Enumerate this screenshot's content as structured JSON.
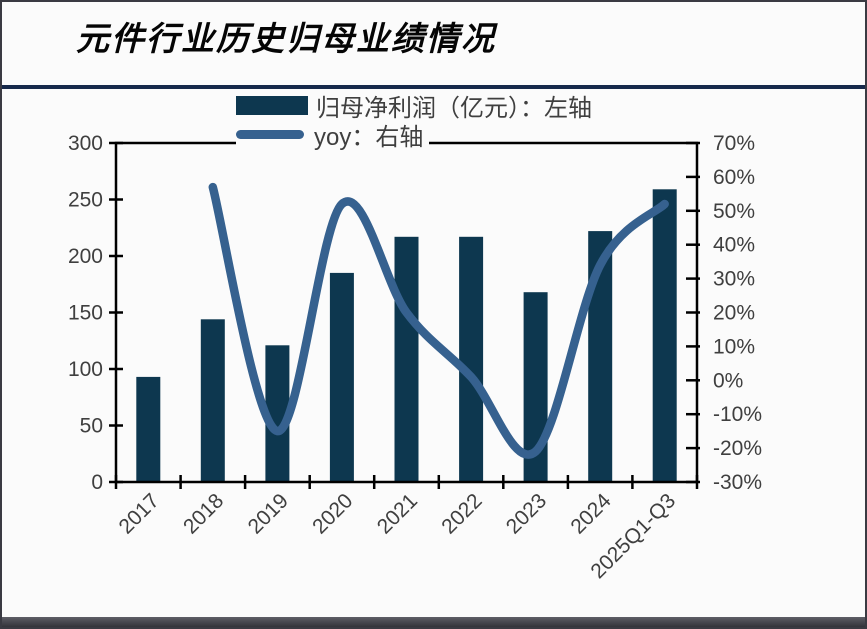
{
  "title": "元件行业历史归母业绩情况",
  "legend": {
    "bar_label": "归母净利润（亿元）：左轴",
    "line_label": "yoy：右轴"
  },
  "colors": {
    "bar": "#0d374f",
    "line": "#36618f",
    "divider": "#16294b",
    "axis_text": "#3f3f3f",
    "axis_line": "#000000",
    "background": "#fbfbfb"
  },
  "chart_data": {
    "type": "bar",
    "title": "元件行业历史归母业绩情况",
    "categories": [
      "2017",
      "2018",
      "2019",
      "2020",
      "2021",
      "2022",
      "2023",
      "2024",
      "2025Q1-Q3"
    ],
    "series": [
      {
        "name": "归母净利润（亿元）：左轴",
        "type": "bar",
        "axis": "left",
        "color": "#0d374f",
        "values": [
          93,
          144,
          121,
          185,
          217,
          217,
          168,
          222,
          259
        ]
      },
      {
        "name": "yoy：右轴",
        "type": "line",
        "axis": "right",
        "unit": "%",
        "color": "#36618f",
        "values": [
          null,
          57,
          -15,
          52,
          20,
          1,
          -21,
          34,
          52
        ]
      }
    ],
    "left_axis": {
      "min": 0,
      "max": 300,
      "step": 50,
      "tick_labels": [
        "0",
        "50",
        "100",
        "150",
        "200",
        "250",
        "300"
      ]
    },
    "right_axis": {
      "min": -30,
      "max": 70,
      "step": 10,
      "tick_labels": [
        "-30%",
        "-20%",
        "-10%",
        "0%",
        "10%",
        "20%",
        "30%",
        "40%",
        "50%",
        "60%",
        "70%"
      ]
    },
    "legend_position": "top",
    "grid": false,
    "x_tick_rotation": -45
  }
}
